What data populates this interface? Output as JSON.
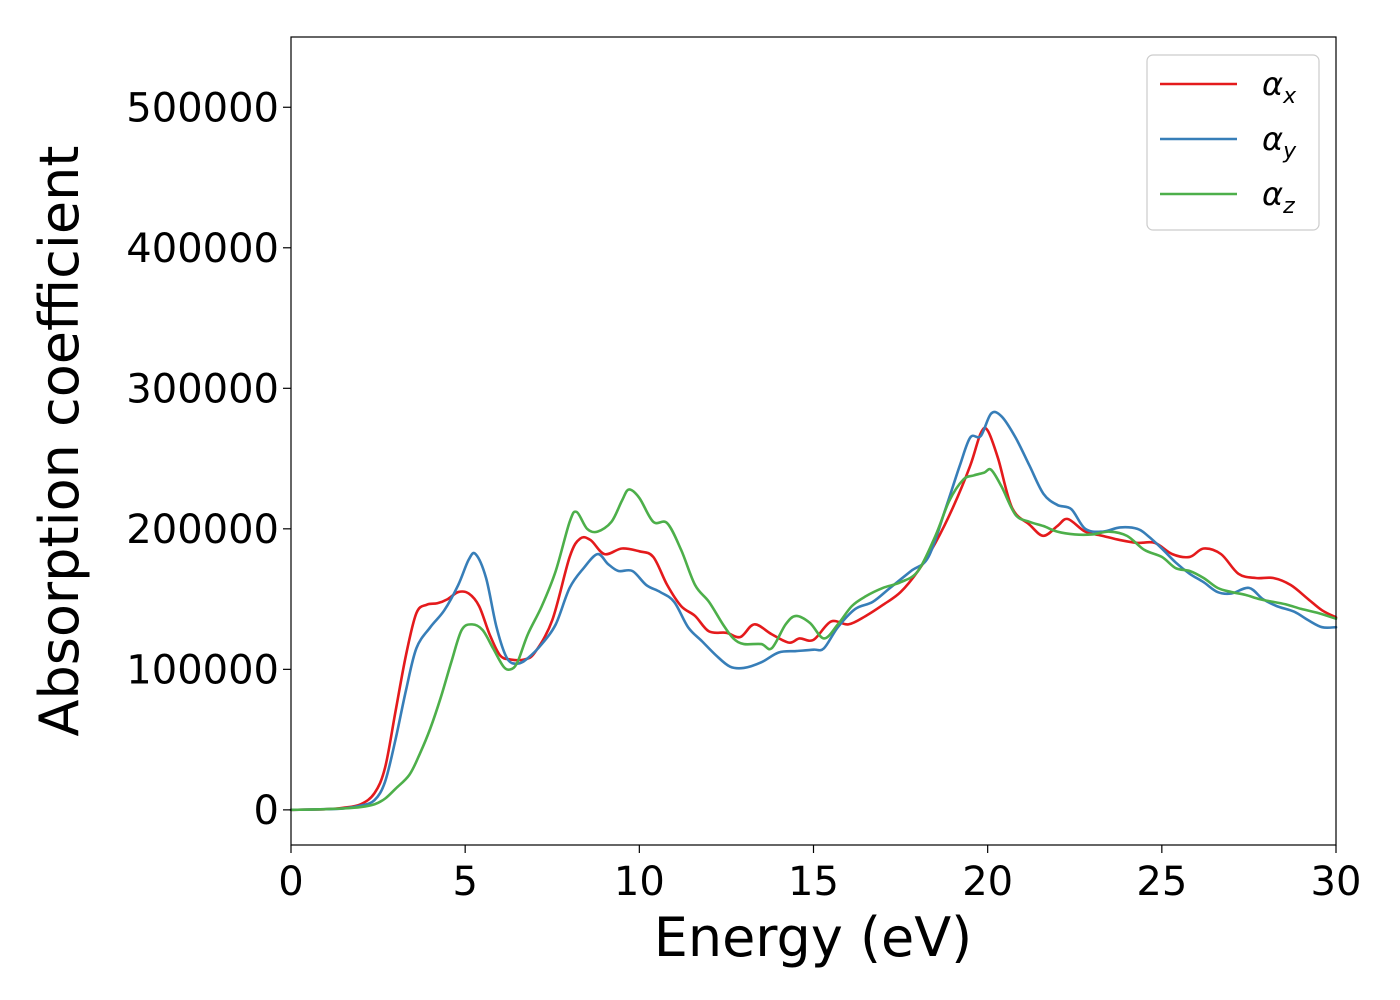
{
  "chart_data": {
    "type": "line",
    "title": "",
    "xlabel": "Energy (eV)",
    "ylabel": "Absorption coefficient",
    "xlim": [
      0,
      30
    ],
    "ylim": [
      -25000,
      550000
    ],
    "xticks": [
      "0",
      "5",
      "10",
      "15",
      "20",
      "25",
      "30"
    ],
    "yticks": [
      "0",
      "100000",
      "200000",
      "300000",
      "400000",
      "500000"
    ],
    "grid": false,
    "legend_position": "top-right",
    "series": [
      {
        "name": "α",
        "subscript": "x",
        "color": "#e41a1c",
        "points": [
          [
            0,
            0
          ],
          [
            1,
            500
          ],
          [
            1.5,
            1500
          ],
          [
            2,
            4000
          ],
          [
            2.4,
            12000
          ],
          [
            2.7,
            30000
          ],
          [
            3,
            70000
          ],
          [
            3.3,
            110000
          ],
          [
            3.6,
            140000
          ],
          [
            3.9,
            146000
          ],
          [
            4.2,
            147000
          ],
          [
            4.5,
            150000
          ],
          [
            4.8,
            155000
          ],
          [
            5.1,
            154000
          ],
          [
            5.4,
            145000
          ],
          [
            5.7,
            125000
          ],
          [
            6,
            110000
          ],
          [
            6.3,
            107000
          ],
          [
            6.7,
            107000
          ],
          [
            7,
            112000
          ],
          [
            7.5,
            135000
          ],
          [
            8,
            180000
          ],
          [
            8.3,
            193000
          ],
          [
            8.6,
            192000
          ],
          [
            9,
            182000
          ],
          [
            9.5,
            186000
          ],
          [
            10,
            184000
          ],
          [
            10.4,
            180000
          ],
          [
            10.8,
            160000
          ],
          [
            11.2,
            145000
          ],
          [
            11.6,
            138000
          ],
          [
            12,
            127000
          ],
          [
            12.5,
            126000
          ],
          [
            12.9,
            123000
          ],
          [
            13.3,
            132000
          ],
          [
            13.8,
            125000
          ],
          [
            14.3,
            119000
          ],
          [
            14.6,
            122000
          ],
          [
            15,
            121000
          ],
          [
            15.5,
            134000
          ],
          [
            16,
            132000
          ],
          [
            16.5,
            138000
          ],
          [
            17,
            146000
          ],
          [
            17.5,
            155000
          ],
          [
            18,
            170000
          ],
          [
            18.5,
            190000
          ],
          [
            19,
            215000
          ],
          [
            19.5,
            245000
          ],
          [
            19.8,
            268000
          ],
          [
            20,
            270000
          ],
          [
            20.3,
            250000
          ],
          [
            20.7,
            215000
          ],
          [
            21.2,
            203000
          ],
          [
            21.6,
            195000
          ],
          [
            22,
            202000
          ],
          [
            22.3,
            207000
          ],
          [
            22.8,
            198000
          ],
          [
            23.3,
            195000
          ],
          [
            23.8,
            192000
          ],
          [
            24.3,
            190000
          ],
          [
            24.8,
            190000
          ],
          [
            25.3,
            182000
          ],
          [
            25.8,
            180000
          ],
          [
            26.2,
            186000
          ],
          [
            26.7,
            182000
          ],
          [
            27.2,
            168000
          ],
          [
            27.7,
            165000
          ],
          [
            28.2,
            165000
          ],
          [
            28.7,
            160000
          ],
          [
            29.2,
            150000
          ],
          [
            29.6,
            142000
          ],
          [
            30,
            137000
          ]
        ]
      },
      {
        "name": "α",
        "subscript": "y",
        "color": "#377eb8",
        "points": [
          [
            0,
            0
          ],
          [
            1,
            500
          ],
          [
            1.5,
            1000
          ],
          [
            2,
            3000
          ],
          [
            2.4,
            7000
          ],
          [
            2.7,
            20000
          ],
          [
            3,
            50000
          ],
          [
            3.3,
            85000
          ],
          [
            3.6,
            115000
          ],
          [
            4,
            130000
          ],
          [
            4.4,
            142000
          ],
          [
            4.8,
            160000
          ],
          [
            5.1,
            178000
          ],
          [
            5.3,
            182000
          ],
          [
            5.6,
            165000
          ],
          [
            5.9,
            130000
          ],
          [
            6.2,
            108000
          ],
          [
            6.5,
            104000
          ],
          [
            6.8,
            108000
          ],
          [
            7.2,
            118000
          ],
          [
            7.6,
            132000
          ],
          [
            8,
            158000
          ],
          [
            8.4,
            172000
          ],
          [
            8.8,
            182000
          ],
          [
            9.1,
            175000
          ],
          [
            9.4,
            170000
          ],
          [
            9.8,
            170000
          ],
          [
            10.2,
            160000
          ],
          [
            10.6,
            155000
          ],
          [
            11,
            148000
          ],
          [
            11.4,
            130000
          ],
          [
            11.8,
            120000
          ],
          [
            12.2,
            110000
          ],
          [
            12.6,
            102000
          ],
          [
            13,
            101000
          ],
          [
            13.5,
            105000
          ],
          [
            14,
            112000
          ],
          [
            14.5,
            113000
          ],
          [
            15,
            114000
          ],
          [
            15.3,
            115000
          ],
          [
            15.7,
            130000
          ],
          [
            16.2,
            143000
          ],
          [
            16.7,
            148000
          ],
          [
            17.2,
            158000
          ],
          [
            17.8,
            170000
          ],
          [
            18.3,
            180000
          ],
          [
            18.8,
            215000
          ],
          [
            19.2,
            245000
          ],
          [
            19.5,
            265000
          ],
          [
            19.8,
            266000
          ],
          [
            20.1,
            282000
          ],
          [
            20.4,
            280000
          ],
          [
            20.8,
            265000
          ],
          [
            21.2,
            245000
          ],
          [
            21.6,
            225000
          ],
          [
            22,
            217000
          ],
          [
            22.4,
            214000
          ],
          [
            22.8,
            200000
          ],
          [
            23.3,
            198000
          ],
          [
            23.8,
            201000
          ],
          [
            24.3,
            200000
          ],
          [
            24.6,
            195000
          ],
          [
            25,
            186000
          ],
          [
            25.4,
            176000
          ],
          [
            25.8,
            168000
          ],
          [
            26.2,
            162000
          ],
          [
            26.6,
            155000
          ],
          [
            27,
            154000
          ],
          [
            27.5,
            158000
          ],
          [
            27.9,
            150000
          ],
          [
            28.3,
            145000
          ],
          [
            28.8,
            141000
          ],
          [
            29.2,
            135000
          ],
          [
            29.6,
            130000
          ],
          [
            30,
            130000
          ]
        ]
      },
      {
        "name": "α",
        "subscript": "z",
        "color": "#4daf4a",
        "points": [
          [
            0,
            0
          ],
          [
            1,
            500
          ],
          [
            1.5,
            1000
          ],
          [
            2,
            2000
          ],
          [
            2.4,
            4000
          ],
          [
            2.7,
            8000
          ],
          [
            3,
            15000
          ],
          [
            3.4,
            25000
          ],
          [
            3.7,
            40000
          ],
          [
            4,
            58000
          ],
          [
            4.3,
            80000
          ],
          [
            4.6,
            105000
          ],
          [
            4.9,
            128000
          ],
          [
            5.2,
            132000
          ],
          [
            5.5,
            128000
          ],
          [
            5.8,
            115000
          ],
          [
            6.1,
            102000
          ],
          [
            6.3,
            100000
          ],
          [
            6.5,
            105000
          ],
          [
            6.8,
            125000
          ],
          [
            7.2,
            145000
          ],
          [
            7.6,
            170000
          ],
          [
            8,
            205000
          ],
          [
            8.2,
            212000
          ],
          [
            8.5,
            200000
          ],
          [
            8.8,
            198000
          ],
          [
            9.2,
            205000
          ],
          [
            9.5,
            220000
          ],
          [
            9.7,
            228000
          ],
          [
            10,
            222000
          ],
          [
            10.4,
            205000
          ],
          [
            10.8,
            204000
          ],
          [
            11.2,
            185000
          ],
          [
            11.6,
            160000
          ],
          [
            12,
            148000
          ],
          [
            12.4,
            132000
          ],
          [
            12.7,
            122000
          ],
          [
            13,
            118000
          ],
          [
            13.5,
            118000
          ],
          [
            13.8,
            115000
          ],
          [
            14.2,
            132000
          ],
          [
            14.5,
            138000
          ],
          [
            14.9,
            133000
          ],
          [
            15.3,
            122000
          ],
          [
            15.7,
            132000
          ],
          [
            16.1,
            145000
          ],
          [
            16.5,
            152000
          ],
          [
            17,
            158000
          ],
          [
            17.5,
            162000
          ],
          [
            18,
            170000
          ],
          [
            18.5,
            195000
          ],
          [
            18.9,
            220000
          ],
          [
            19.3,
            235000
          ],
          [
            19.6,
            238000
          ],
          [
            19.9,
            240000
          ],
          [
            20.1,
            242000
          ],
          [
            20.4,
            230000
          ],
          [
            20.8,
            210000
          ],
          [
            21.2,
            205000
          ],
          [
            21.6,
            202000
          ],
          [
            22,
            198000
          ],
          [
            22.5,
            196000
          ],
          [
            23,
            196000
          ],
          [
            23.5,
            198000
          ],
          [
            24,
            195000
          ],
          [
            24.5,
            185000
          ],
          [
            25,
            180000
          ],
          [
            25.4,
            172000
          ],
          [
            25.8,
            170000
          ],
          [
            26.2,
            165000
          ],
          [
            26.6,
            158000
          ],
          [
            27,
            155000
          ],
          [
            27.4,
            153000
          ],
          [
            27.8,
            150000
          ],
          [
            28.2,
            148000
          ],
          [
            28.6,
            146000
          ],
          [
            29,
            143000
          ],
          [
            29.5,
            140000
          ],
          [
            30,
            136000
          ]
        ]
      }
    ]
  }
}
